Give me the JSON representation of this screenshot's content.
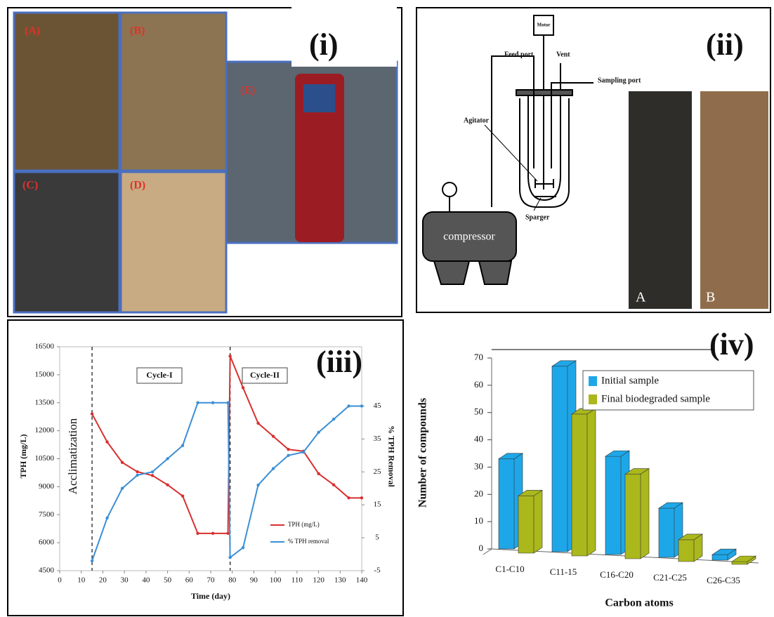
{
  "panel_labels": [
    "(i)",
    "(ii)",
    "(iii)",
    "(iv)"
  ],
  "photos_i": [
    "(A)",
    "(B)",
    "(E)",
    "(C)",
    "(D)"
  ],
  "diagram": {
    "motor": "Motor",
    "feed_port": "Feed port",
    "vent": "Vent",
    "sampling_port": "Sampling port",
    "agitator": "Agitator",
    "compressor": "compressor",
    "sparger": "Sparger",
    "photo_a": "A",
    "photo_b": "B"
  },
  "chart_data": [
    {
      "type": "line",
      "x_label": "Time (day)",
      "y_label": "TPH (mg/L)",
      "y2_label": "% TPH Removal",
      "annotations": [
        "Acclimatization",
        "Cycle-I",
        "Cycle-II"
      ],
      "vlines": [
        15,
        79
      ],
      "x": [
        15,
        22,
        29,
        36,
        43,
        50,
        57,
        64,
        71,
        78,
        79,
        85,
        92,
        99,
        106,
        113,
        120,
        127,
        134,
        140
      ],
      "series": [
        {
          "name": "TPH (mg/L)",
          "color": "#d8302f",
          "values": [
            12900,
            11400,
            10300,
            9800,
            9600,
            9100,
            8500,
            6500,
            6500,
            6500,
            16000,
            14300,
            12400,
            11700,
            11000,
            10900,
            9700,
            9100,
            8400,
            8400
          ]
        },
        {
          "name": "% TPH removal",
          "color": "#3b8fd6",
          "axis": "y2",
          "values": [
            -2,
            11,
            20,
            24,
            25,
            29,
            33,
            46,
            46,
            46,
            -1,
            2,
            21,
            26,
            30,
            31,
            37,
            41,
            45,
            45
          ]
        }
      ],
      "xlim": [
        0,
        140
      ],
      "xticks": [
        0,
        10,
        20,
        30,
        40,
        50,
        60,
        70,
        80,
        90,
        100,
        110,
        120,
        130,
        140
      ],
      "ylim": [
        4500,
        16500
      ],
      "yticks": [
        4500,
        6000,
        7500,
        9000,
        10500,
        12000,
        13500,
        15000,
        16500
      ],
      "y2lim": [
        -5,
        63
      ],
      "y2ticks": [
        -5,
        5,
        15,
        25,
        35,
        45
      ]
    },
    {
      "type": "bar3d",
      "x_label": "Carbon atoms",
      "y_label": "Number of compounds",
      "categories": [
        "C1-C10",
        "C11-15",
        "C16-C20",
        "C21-C25",
        "C26-C35"
      ],
      "series": [
        {
          "name": "Initial sample",
          "color": "#1ea7e8",
          "values": [
            33,
            68,
            36,
            18,
            2
          ]
        },
        {
          "name": "Final biodegraded sample",
          "color": "#aab81c",
          "values": [
            21,
            52,
            31,
            8,
            1
          ]
        }
      ],
      "ylim": [
        0,
        70
      ],
      "yticks": [
        0,
        10,
        20,
        30,
        40,
        50,
        60,
        70
      ]
    }
  ]
}
